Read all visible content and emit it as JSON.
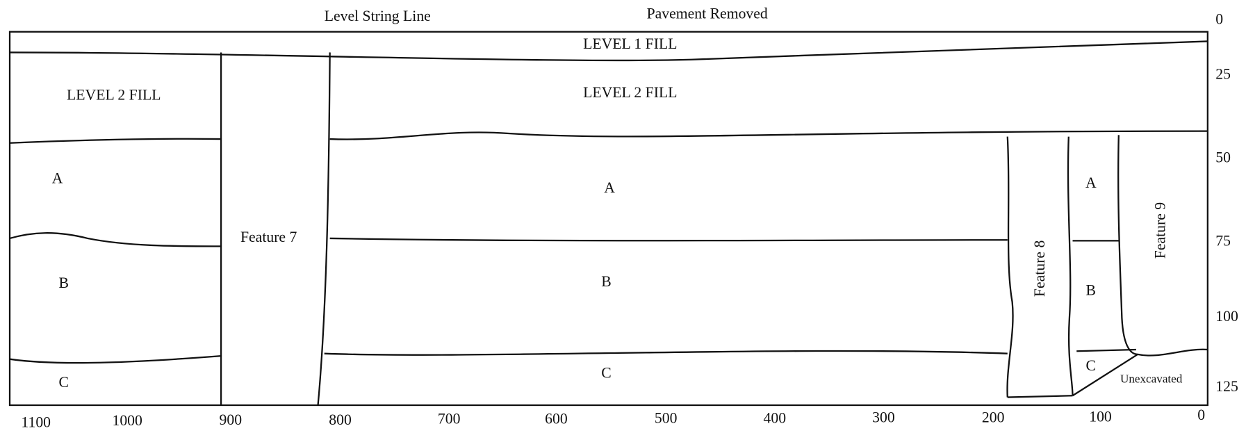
{
  "header": {
    "left_label": "Level String Line",
    "right_label": "Pavement Removed"
  },
  "depth_scale": [
    "0",
    "25",
    "50",
    "75",
    "100",
    "125"
  ],
  "distance_scale": [
    "1100",
    "1000",
    "900",
    "800",
    "700",
    "600",
    "500",
    "400",
    "300",
    "200",
    "100",
    "0"
  ],
  "layers": {
    "level_1": "LEVEL 1 FILL",
    "level_2_left": "LEVEL 2 FILL",
    "level_2_middle": "LEVEL 2 FILL"
  },
  "left_section": {
    "a": "A",
    "b": "B",
    "c": "C"
  },
  "middle_section": {
    "a": "A",
    "b": "B",
    "c": "C"
  },
  "right_section": {
    "a": "A",
    "b": "B",
    "c": "C"
  },
  "features": {
    "feature_7": "Feature 7",
    "feature_8": "Feature 8",
    "feature_9": "Feature 9",
    "unexcavated": "Unexcavated"
  }
}
